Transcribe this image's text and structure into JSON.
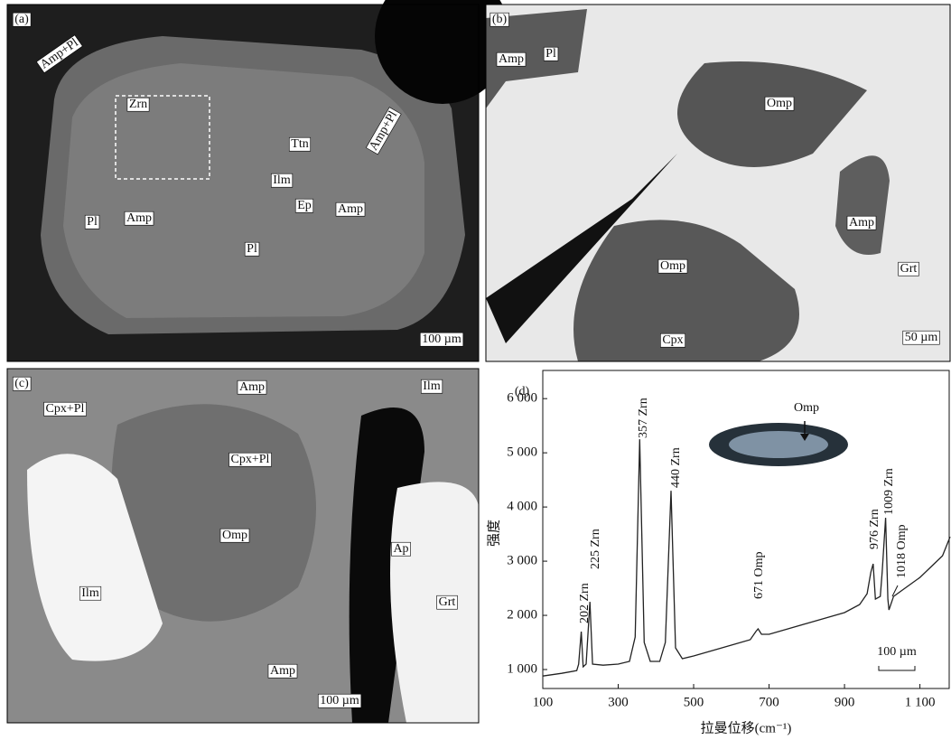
{
  "panels": [
    {
      "label": "(a)",
      "labels": [
        "Amp+Pl",
        "Zrn",
        "Amp+Pl",
        "Ttn",
        "Ilm",
        "Ep",
        "Amp",
        "Pl",
        "Amp",
        "Pl"
      ],
      "scale_bar": "100 µm"
    },
    {
      "label": "(b)",
      "labels": [
        "Amp",
        "Pl",
        "Omp",
        "Amp",
        "Grt",
        "Omp",
        "Cpx"
      ],
      "scale_bar": "50 µm"
    },
    {
      "label": "(c)",
      "labels": [
        "Cpx+Pl",
        "Amp",
        "Ilm",
        "Cpx+Pl",
        "Omp",
        "Ap",
        "Ilm",
        "Grt",
        "Amp"
      ],
      "scale_bar": "100 µm"
    }
  ],
  "chart_data": {
    "type": "line",
    "panel_label": "(d)",
    "x_label": "拉曼位移(cm⁻¹)",
    "y_label": "强度",
    "x": [
      100,
      150,
      190,
      195,
      202,
      207,
      215,
      225,
      232,
      260,
      300,
      330,
      345,
      357,
      369,
      385,
      410,
      425,
      440,
      452,
      470,
      500,
      550,
      600,
      650,
      665,
      671,
      680,
      700,
      750,
      800,
      850,
      900,
      940,
      960,
      970,
      976,
      982,
      995,
      1000,
      1009,
      1015,
      1018,
      1030,
      1050,
      1080,
      1100,
      1130,
      1160,
      1180
    ],
    "values": [
      880,
      930,
      980,
      1100,
      1700,
      1050,
      1100,
      2250,
      1100,
      1080,
      1100,
      1150,
      1600,
      5250,
      1500,
      1150,
      1150,
      1500,
      4300,
      1400,
      1200,
      1250,
      1350,
      1450,
      1550,
      1700,
      1750,
      1650,
      1650,
      1750,
      1850,
      1950,
      2050,
      2200,
      2400,
      2800,
      2950,
      2300,
      2350,
      2800,
      3800,
      2300,
      2100,
      2350,
      2450,
      2600,
      2700,
      2900,
      3100,
      3450
    ],
    "color": "#222",
    "xlim": [
      100,
      1180
    ],
    "ylim": [
      650,
      6520
    ],
    "xticks": [
      100,
      300,
      500,
      700,
      900,
      {
        "value": 1100,
        "label": "1 100"
      }
    ],
    "yticks": [
      {
        "value": 1000,
        "label": "1 000"
      },
      {
        "value": 2000,
        "label": "2 000"
      },
      {
        "value": 3000,
        "label": "3 000"
      },
      {
        "value": 4000,
        "label": "4 000"
      },
      {
        "value": 5000,
        "label": "5 000"
      },
      {
        "value": 6000,
        "label": "6 000"
      }
    ],
    "annotations": [
      "202 Zrn",
      "225 Zrn",
      "357 Zrn",
      "440 Zrn",
      "671 Omp",
      "976 Zrn",
      "1009 Zrn",
      "1018 Omp"
    ],
    "inset_label": "Omp",
    "scale_bar": "100 µm"
  }
}
